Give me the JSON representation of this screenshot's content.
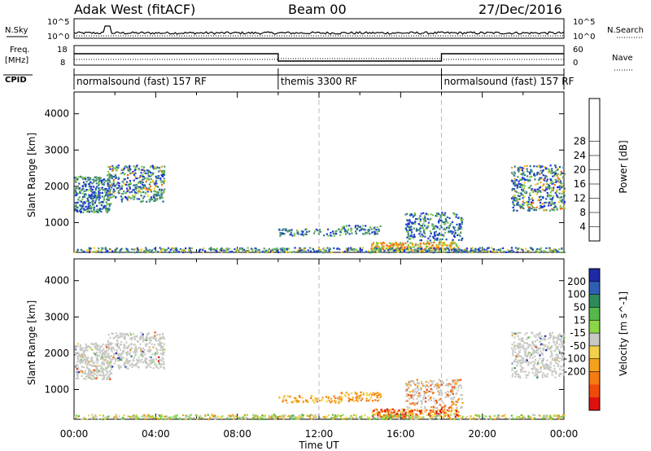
{
  "header": {
    "station": "Adak West (fitACF)",
    "beam": "Beam 00",
    "date": "27/Dec/2016"
  },
  "strip": {
    "nsky_label": "N.Sky",
    "nsearch_label": "N.Search",
    "freq_label": "Freq.",
    "freq_unit": "[MHz]",
    "nave_label": "Nave",
    "cpid_label": "CPID",
    "nsky_ticks": [
      "10^5",
      "10^0"
    ],
    "nsearch_ticks": [
      "10^5",
      "10^0"
    ],
    "freq_ticks": [
      "18",
      "8"
    ],
    "nave_ticks": [
      "60",
      "0"
    ]
  },
  "cpid_segments": [
    {
      "label": "normalsound (fast) 157 RF",
      "start": 0,
      "end": 10
    },
    {
      "label": "themis 3300 RF",
      "start": 10,
      "end": 18
    },
    {
      "label": "normalsound (fast) 157 RF",
      "start": 18,
      "end": 24
    }
  ],
  "chart_data": [
    {
      "type": "heatmap",
      "name": "power",
      "ylabel": "Slant Range [km]",
      "xlim": [
        0,
        24
      ],
      "ylim": [
        180,
        4600
      ],
      "yticks": [
        "1000",
        "2000",
        "3000",
        "4000"
      ],
      "colorbar": {
        "label": "Power [dB]",
        "ticks": [
          "4",
          "8",
          "12",
          "16",
          "20",
          "24",
          "28"
        ],
        "colors": [
          "#1a2ce0",
          "#1e50b8",
          "#2f7a8a",
          "#4e9a6a",
          "#7cc64a",
          "#f2c81a",
          "#f59a1a",
          "#f26a10",
          "#e83a0a",
          "#d80a0a"
        ]
      }
    },
    {
      "type": "heatmap",
      "name": "velocity",
      "ylabel": "Slant Range [km]",
      "xlabel": "Time UT",
      "xlim": [
        0,
        24
      ],
      "ylim": [
        180,
        4600
      ],
      "yticks": [
        "1000",
        "2000",
        "3000",
        "4000"
      ],
      "xticks": [
        "00:00",
        "04:00",
        "08:00",
        "12:00",
        "16:00",
        "20:00",
        "00:00"
      ],
      "colorbar": {
        "label": "Velocity [m s^-1]",
        "ticks": [
          "200",
          "100",
          "50",
          "15",
          "-15",
          "-50",
          "-100",
          "-200"
        ],
        "colors": [
          "#1e2aa6",
          "#2f5fb4",
          "#2f8a5a",
          "#55b84a",
          "#8ad84a",
          "#c8c8c4",
          "#f2d04a",
          "#f5a21a",
          "#f57a10",
          "#f04a0a",
          "#e01010"
        ]
      }
    }
  ]
}
